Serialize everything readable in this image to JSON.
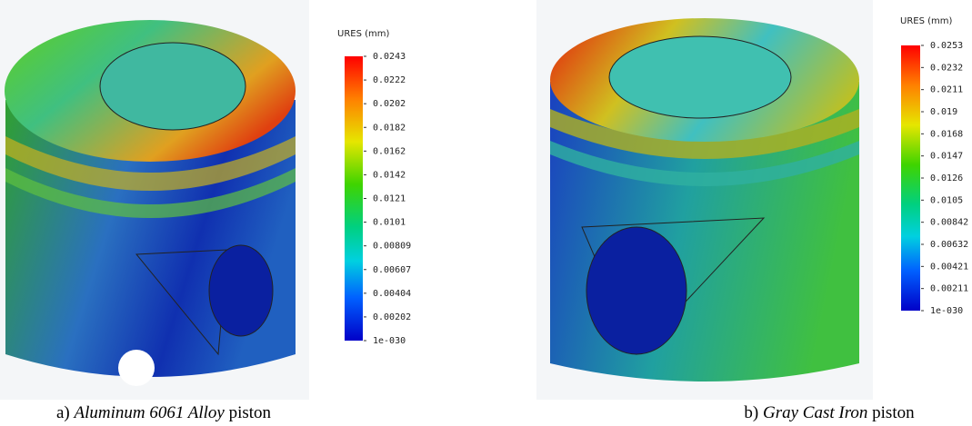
{
  "panels": [
    {
      "legend_title": "URES (mm)",
      "legend_labels": [
        "0.0243",
        "0.0222",
        "0.0202",
        "0.0182",
        "0.0162",
        "0.0142",
        "0.0121",
        "0.0101",
        "0.00809",
        "0.00607",
        "0.00404",
        "0.00202",
        "1e-030"
      ],
      "caption": {
        "prefix": "a)",
        "material": "Aluminum 6061 Alloy",
        "suffix": "piston"
      }
    },
    {
      "legend_title": "URES (mm)",
      "legend_labels": [
        "0.0253",
        "0.0232",
        "0.0211",
        "0.019",
        "0.0168",
        "0.0147",
        "0.0126",
        "0.0105",
        "0.00842",
        "0.00632",
        "0.00421",
        "0.00211",
        "1e-030"
      ],
      "caption": {
        "prefix": "b)",
        "material": "Gray Cast Iron",
        "suffix": "piston"
      }
    }
  ]
}
